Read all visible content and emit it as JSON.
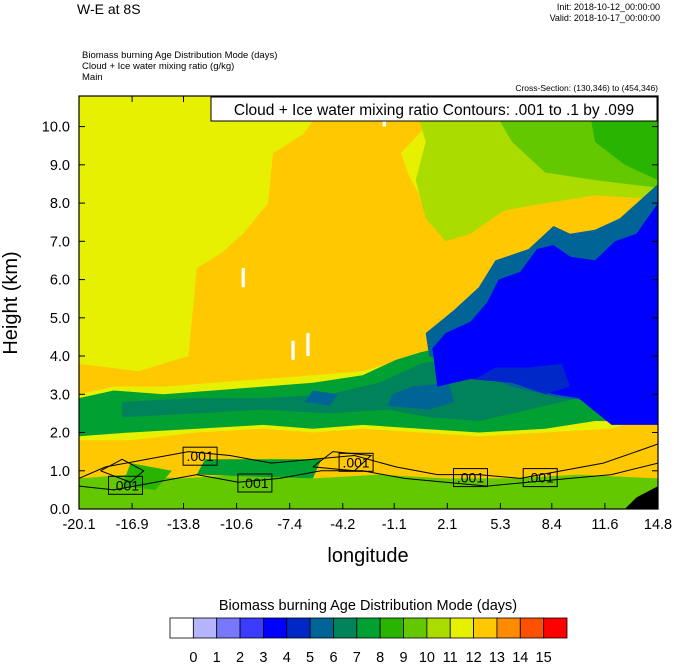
{
  "header": {
    "title": "W-E at 8S",
    "init": "Init: 2018-10-12_00:00:00",
    "valid": "Valid: 2018-10-17_00:00:00",
    "subtitle_lines": [
      "Biomass burning Age Distribution Mode   (days)",
      "Cloud + Ice water mixing ratio   (g/kg)",
      "Main"
    ],
    "cross_section": "Cross-Section: (130,346) to (454,346)"
  },
  "chart_data": {
    "type": "heatmap",
    "title": "W-E at 8S",
    "xlabel": "longitude",
    "ylabel": "Height (km)",
    "xlim": [
      -20.1,
      14.8
    ],
    "ylim": [
      0.0,
      10.8
    ],
    "x_ticks": [
      "-20.1",
      "-16.9",
      "-13.8",
      "-10.6",
      "-7.4",
      "-4.2",
      "-1.1",
      "2.1",
      "5.3",
      "8.4",
      "11.6",
      "14.8"
    ],
    "y_ticks": [
      "0.0",
      "1.0",
      "2.0",
      "3.0",
      "4.0",
      "5.0",
      "6.0",
      "7.0",
      "8.0",
      "9.0",
      "10.0"
    ],
    "contour_annotation": "Cloud + Ice water mixing ratio Contours: .001 to .1 by .099",
    "contour_labels": [
      {
        "text": ".001",
        "x": -17.3,
        "y": 0.62
      },
      {
        "text": ".001",
        "x": -12.8,
        "y": 1.38
      },
      {
        "text": ".001",
        "x": -9.5,
        "y": 0.68
      },
      {
        "text": ".001",
        "x": -3.4,
        "y": 1.22
      },
      {
        "text": ".001",
        "x": 3.5,
        "y": 0.82
      },
      {
        "text": ".001",
        "x": 7.7,
        "y": 0.82
      }
    ],
    "colorbar": {
      "title": "Biomass burning Age Distribution Mode  (days)",
      "levels": [
        "0",
        "1",
        "2",
        "3",
        "4",
        "5",
        "6",
        "7",
        "8",
        "9",
        "10",
        "11",
        "12",
        "13",
        "14",
        "15"
      ],
      "colors": [
        "#ffffff",
        "#b4b4ff",
        "#7878ff",
        "#3c3cff",
        "#0000ff",
        "#0028c8",
        "#006496",
        "#00825a",
        "#00a032",
        "#28b400",
        "#64c800",
        "#aadc00",
        "#e6f000",
        "#ffc800",
        "#ff8c00",
        "#ff5000",
        "#ff0000"
      ]
    },
    "regions": [
      {
        "level": 12,
        "comment": "background upper troposphere (yellow)"
      },
      {
        "level": 13,
        "comment": "mid-level orange band and low-level orange"
      },
      {
        "level": 11,
        "comment": "upper right yellow-green"
      },
      {
        "level": 9,
        "comment": "upper right green"
      },
      {
        "level": 7,
        "comment": "green boundary layer band 1.5-3.5 km"
      },
      {
        "level": 6,
        "comment": "teal pockets"
      },
      {
        "level": 4,
        "comment": "blue region east of 2E, 3-7 km"
      },
      {
        "level": 10,
        "comment": "surface light green"
      }
    ]
  }
}
